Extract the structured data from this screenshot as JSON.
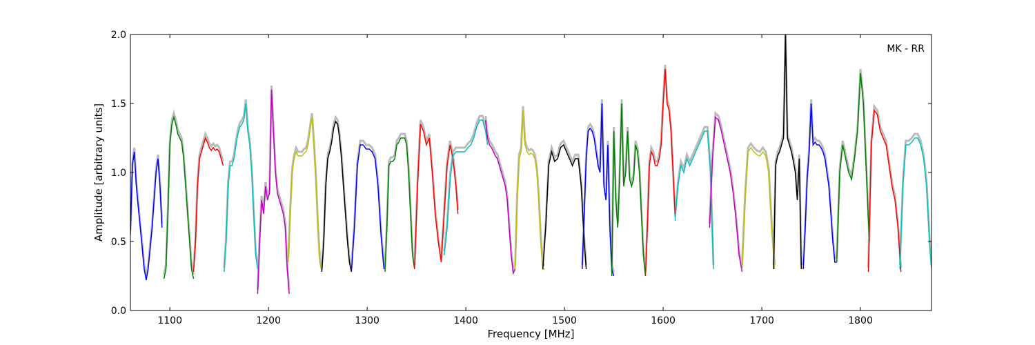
{
  "chart_data": {
    "type": "line",
    "xlabel": "Frequency [MHz]",
    "ylabel": "Amplitude [arbitrary units]",
    "annotation": "MK - RR",
    "annotation_placement": "top-right",
    "xlim": [
      1060,
      1872
    ],
    "ylim": [
      0.0,
      2.0
    ],
    "xticks": [
      1100,
      1200,
      1300,
      1400,
      1500,
      1600,
      1700,
      1800
    ],
    "yticks": [
      0.0,
      0.5,
      1.0,
      1.5,
      2.0
    ],
    "xtick_labels": [
      "1100",
      "1200",
      "1300",
      "1400",
      "1500",
      "1600",
      "1700",
      "1800"
    ],
    "ytick_labels": [
      "0.0",
      "0.5",
      "1.0",
      "1.5",
      "2.0"
    ],
    "grid": false,
    "background_color": "#bbbbbb",
    "series": [
      {
        "color": "#0000ff",
        "x": [
          1060,
          1062,
          1064,
          1066,
          1068,
          1070,
          1072,
          1074,
          1076,
          1078,
          1080,
          1082,
          1084,
          1086,
          1088,
          1090,
          1092
        ],
        "y": [
          0.55,
          1.05,
          1.15,
          0.9,
          0.75,
          0.6,
          0.45,
          0.3,
          0.22,
          0.3,
          0.45,
          0.6,
          0.8,
          1.0,
          1.1,
          0.9,
          0.6
        ]
      },
      {
        "color": "#008000",
        "x": [
          1094,
          1096,
          1098,
          1100,
          1102,
          1104,
          1106,
          1108,
          1110,
          1112,
          1114,
          1116,
          1118,
          1120,
          1122,
          1124
        ],
        "y": [
          0.23,
          0.3,
          0.7,
          1.2,
          1.35,
          1.4,
          1.35,
          1.28,
          1.25,
          1.22,
          1.1,
          0.9,
          0.7,
          0.5,
          0.3,
          0.23
        ]
      },
      {
        "color": "#ff0000",
        "x": [
          1124,
          1126,
          1128,
          1130,
          1132,
          1134,
          1136,
          1138,
          1140,
          1142,
          1144,
          1146,
          1148,
          1150,
          1152,
          1154
        ],
        "y": [
          0.28,
          0.5,
          0.9,
          1.1,
          1.15,
          1.2,
          1.25,
          1.22,
          1.18,
          1.16,
          1.18,
          1.16,
          1.17,
          1.15,
          1.1,
          1.05
        ]
      },
      {
        "color": "#00bfbf",
        "x": [
          1155,
          1157,
          1159,
          1161,
          1163,
          1165,
          1167,
          1169,
          1171,
          1173,
          1175,
          1177,
          1179,
          1181,
          1183,
          1185,
          1187,
          1189
        ],
        "y": [
          0.28,
          0.5,
          0.9,
          1.05,
          1.05,
          1.1,
          1.2,
          1.28,
          1.33,
          1.35,
          1.38,
          1.5,
          1.3,
          1.2,
          1.0,
          0.7,
          0.4,
          0.3
        ]
      },
      {
        "color": "#bf00bf",
        "x": [
          1189,
          1191,
          1193,
          1195,
          1197,
          1199,
          1201,
          1203,
          1205,
          1207,
          1209,
          1211,
          1213,
          1215,
          1217,
          1219,
          1221
        ],
        "y": [
          0.12,
          0.5,
          0.8,
          0.7,
          0.9,
          0.8,
          0.85,
          1.6,
          1.3,
          1.0,
          0.85,
          0.8,
          0.75,
          0.7,
          0.6,
          0.3,
          0.12
        ]
      },
      {
        "color": "#bfbf00",
        "x": [
          1220,
          1222,
          1224,
          1226,
          1228,
          1230,
          1232,
          1234,
          1236,
          1238,
          1240,
          1242,
          1244,
          1246,
          1248,
          1250,
          1252,
          1254
        ],
        "y": [
          0.35,
          0.7,
          1.0,
          1.1,
          1.15,
          1.12,
          1.12,
          1.12,
          1.14,
          1.15,
          1.2,
          1.3,
          1.4,
          1.2,
          0.95,
          0.6,
          0.35,
          0.28
        ]
      },
      {
        "color": "#000000",
        "x": [
          1254,
          1256,
          1258,
          1260,
          1262,
          1264,
          1266,
          1268,
          1270,
          1272,
          1274,
          1276,
          1278,
          1280,
          1282,
          1284
        ],
        "y": [
          0.28,
          0.5,
          0.9,
          1.1,
          1.15,
          1.22,
          1.32,
          1.37,
          1.35,
          1.25,
          1.1,
          0.9,
          0.7,
          0.5,
          0.35,
          0.28
        ]
      },
      {
        "color": "#0000ff",
        "x": [
          1284,
          1287,
          1290,
          1293,
          1296,
          1299,
          1302,
          1305,
          1308,
          1311,
          1314,
          1317
        ],
        "y": [
          0.28,
          0.6,
          1.05,
          1.2,
          1.2,
          1.17,
          1.17,
          1.15,
          1.1,
          0.9,
          0.55,
          0.3
        ]
      },
      {
        "color": "#008000",
        "x": [
          1318,
          1320,
          1322,
          1324,
          1326,
          1328,
          1330,
          1332,
          1334,
          1336,
          1338,
          1340,
          1342,
          1344,
          1346,
          1348
        ],
        "y": [
          0.28,
          0.6,
          1.05,
          1.08,
          1.08,
          1.1,
          1.2,
          1.22,
          1.25,
          1.25,
          1.25,
          1.2,
          1.0,
          0.7,
          0.4,
          0.3
        ]
      },
      {
        "color": "#ff0000",
        "x": [
          1348,
          1351,
          1354,
          1357,
          1360,
          1363,
          1366,
          1369,
          1372,
          1375,
          1378,
          1381,
          1384,
          1387,
          1390,
          1392
        ],
        "y": [
          0.3,
          0.9,
          1.35,
          1.3,
          1.2,
          1.25,
          1.0,
          0.7,
          0.5,
          0.35,
          0.7,
          1.05,
          1.2,
          1.1,
          0.9,
          0.7
        ]
      },
      {
        "color": "#00bfbf",
        "x": [
          1378,
          1381,
          1384,
          1387,
          1390,
          1393,
          1396,
          1399,
          1402,
          1405,
          1408,
          1411,
          1414,
          1417,
          1420,
          1422
        ],
        "y": [
          0.4,
          0.6,
          0.95,
          1.12,
          1.15,
          1.15,
          1.15,
          1.15,
          1.18,
          1.2,
          1.25,
          1.33,
          1.38,
          1.38,
          1.3,
          1.2
        ]
      },
      {
        "color": "#bf00bf",
        "x": [
          1420,
          1422,
          1424,
          1426,
          1428,
          1430,
          1432,
          1434,
          1436,
          1438,
          1440,
          1442,
          1444,
          1446,
          1448,
          1450
        ],
        "y": [
          1.38,
          1.25,
          1.2,
          1.18,
          1.15,
          1.12,
          1.1,
          1.05,
          1.0,
          0.95,
          0.9,
          0.8,
          0.6,
          0.4,
          0.27,
          0.3
        ]
      },
      {
        "color": "#bfbf00",
        "x": [
          1450,
          1452,
          1454,
          1456,
          1458,
          1460,
          1462,
          1464,
          1466,
          1468,
          1470,
          1472,
          1474,
          1476,
          1478,
          1480
        ],
        "y": [
          0.3,
          0.8,
          1.1,
          1.15,
          1.45,
          1.2,
          1.15,
          1.13,
          1.14,
          1.13,
          1.1,
          1.0,
          0.8,
          0.5,
          0.3,
          0.3
        ]
      },
      {
        "color": "#000000",
        "x": [
          1478,
          1481,
          1484,
          1487,
          1490,
          1493,
          1496,
          1499,
          1502,
          1505,
          1508,
          1511,
          1514,
          1517,
          1520,
          1522
        ],
        "y": [
          0.3,
          0.6,
          1.05,
          1.15,
          1.08,
          1.1,
          1.18,
          1.2,
          1.15,
          1.1,
          1.05,
          1.1,
          1.1,
          0.9,
          0.5,
          0.3
        ]
      },
      {
        "color": "#0000ff",
        "x": [
          1518,
          1520,
          1522,
          1524,
          1526,
          1528,
          1530,
          1532,
          1534,
          1536,
          1538,
          1540,
          1542,
          1544,
          1546,
          1548,
          1550
        ],
        "y": [
          0.3,
          0.7,
          1.1,
          1.3,
          1.32,
          1.3,
          1.25,
          1.15,
          1.05,
          1.0,
          1.5,
          0.9,
          0.8,
          1.2,
          0.6,
          0.3,
          0.25
        ]
      },
      {
        "color": "#008000",
        "x": [
          1548,
          1550,
          1552,
          1554,
          1556,
          1558,
          1560,
          1562,
          1564,
          1566,
          1568,
          1570,
          1572,
          1574,
          1576,
          1578,
          1580,
          1582
        ],
        "y": [
          0.25,
          1.3,
          0.8,
          0.6,
          1.0,
          1.5,
          0.9,
          1.0,
          1.3,
          0.95,
          0.9,
          0.95,
          1.2,
          1.15,
          1.0,
          0.7,
          0.4,
          0.25
        ]
      },
      {
        "color": "#ff0000",
        "x": [
          1582,
          1584,
          1586,
          1588,
          1590,
          1592,
          1594,
          1596,
          1598,
          1600,
          1602,
          1604,
          1606,
          1608,
          1610,
          1612
        ],
        "y": [
          0.25,
          0.6,
          1.05,
          1.15,
          1.12,
          1.05,
          1.05,
          1.1,
          1.2,
          1.5,
          1.75,
          1.5,
          1.45,
          1.3,
          1.0,
          0.7
        ]
      },
      {
        "color": "#00bfbf",
        "x": [
          1612,
          1615,
          1618,
          1621,
          1624,
          1627,
          1630,
          1633,
          1636,
          1639,
          1642,
          1645,
          1648,
          1651
        ],
        "y": [
          0.65,
          0.9,
          1.05,
          1.0,
          1.1,
          1.05,
          1.1,
          1.15,
          1.2,
          1.25,
          1.3,
          1.3,
          1.0,
          0.3
        ]
      },
      {
        "color": "#bf00bf",
        "x": [
          1647,
          1650,
          1653,
          1656,
          1659,
          1662,
          1665,
          1668,
          1671,
          1674,
          1677,
          1680
        ],
        "y": [
          0.6,
          1.1,
          1.4,
          1.38,
          1.3,
          1.2,
          1.1,
          1.0,
          0.85,
          0.65,
          0.4,
          0.28
        ]
      },
      {
        "color": "#bfbf00",
        "x": [
          1680,
          1683,
          1686,
          1689,
          1692,
          1695,
          1698,
          1701,
          1704,
          1707,
          1710,
          1713
        ],
        "y": [
          0.3,
          0.8,
          1.15,
          1.18,
          1.15,
          1.13,
          1.12,
          1.15,
          1.12,
          1.0,
          0.6,
          0.3
        ]
      },
      {
        "color": "#000000",
        "x": [
          1712,
          1714,
          1716,
          1718,
          1720,
          1722,
          1724,
          1726,
          1728,
          1730,
          1732,
          1734,
          1736,
          1738,
          1740
        ],
        "y": [
          0.3,
          1.05,
          1.12,
          1.15,
          1.2,
          1.25,
          2.0,
          1.25,
          1.2,
          1.15,
          1.08,
          1.0,
          0.8,
          1.1,
          0.3
        ]
      },
      {
        "color": "#0000ff",
        "x": [
          1742,
          1744,
          1746,
          1748,
          1750,
          1752,
          1754,
          1756,
          1758,
          1760,
          1762,
          1764,
          1766,
          1768,
          1770,
          1772,
          1774,
          1776
        ],
        "y": [
          0.3,
          0.6,
          0.95,
          1.15,
          1.5,
          1.2,
          1.22,
          1.2,
          1.2,
          1.18,
          1.15,
          1.1,
          1.0,
          0.9,
          0.7,
          0.5,
          0.35,
          0.35
        ]
      },
      {
        "color": "#008000",
        "x": [
          1776,
          1779,
          1782,
          1785,
          1788,
          1791,
          1794,
          1797,
          1800,
          1803,
          1806,
          1809
        ],
        "y": [
          0.35,
          1.0,
          1.2,
          1.1,
          1.0,
          0.95,
          1.1,
          1.3,
          1.72,
          1.5,
          1.0,
          0.5
        ]
      },
      {
        "color": "#ff0000",
        "x": [
          1808,
          1811,
          1814,
          1817,
          1820,
          1823,
          1826,
          1829,
          1832,
          1835,
          1838,
          1841
        ],
        "y": [
          0.28,
          1.2,
          1.45,
          1.42,
          1.3,
          1.25,
          1.2,
          1.05,
          0.9,
          0.8,
          0.6,
          0.28
        ]
      },
      {
        "color": "#00bfbf",
        "x": [
          1840,
          1843,
          1846,
          1849,
          1852,
          1855,
          1858,
          1861,
          1864,
          1867,
          1870,
          1872
        ],
        "y": [
          0.3,
          0.9,
          1.2,
          1.2,
          1.22,
          1.25,
          1.25,
          1.2,
          1.1,
          0.9,
          0.5,
          0.3
        ]
      }
    ]
  }
}
